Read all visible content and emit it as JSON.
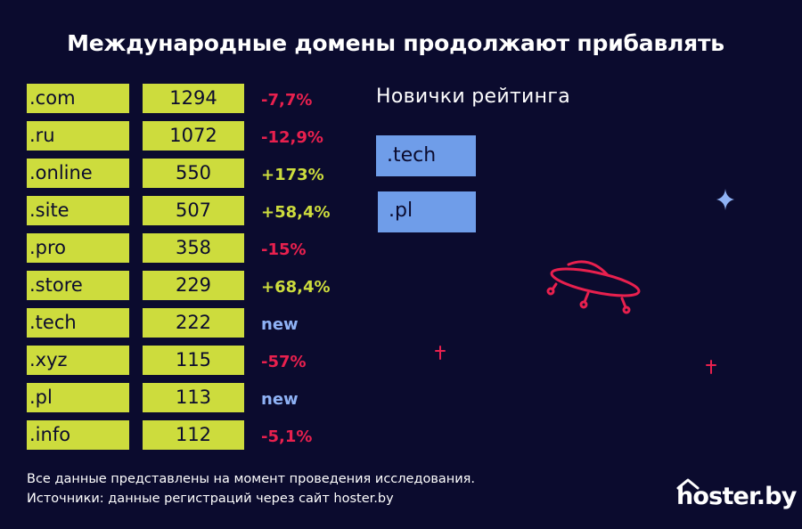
{
  "title": "Международные домены продолжают прибавлять",
  "chart_data": {
    "type": "table",
    "title": "Международные домены продолжают прибавлять",
    "columns": [
      "domain",
      "value",
      "change"
    ],
    "rows": [
      {
        "domain": ".com",
        "value": "1294",
        "change": "-7,7%",
        "trend": "neg"
      },
      {
        "domain": ".ru",
        "value": "1072",
        "change": "-12,9%",
        "trend": "neg"
      },
      {
        "domain": ".online",
        "value": "550",
        "change": "+173%",
        "trend": "pos"
      },
      {
        "domain": ".site",
        "value": "507",
        "change": "+58,4%",
        "trend": "pos"
      },
      {
        "domain": ".pro",
        "value": "358",
        "change": "-15%",
        "trend": "neg"
      },
      {
        "domain": ".store",
        "value": "229",
        "change": "+68,4%",
        "trend": "pos"
      },
      {
        "domain": ".tech",
        "value": "222",
        "change": "new",
        "trend": "new"
      },
      {
        "domain": ".xyz",
        "value": "115",
        "change": "-57%",
        "trend": "neg"
      },
      {
        "domain": ".pl",
        "value": "113",
        "change": "new",
        "trend": "new"
      },
      {
        "domain": ".info",
        "value": "112",
        "change": "-5,1%",
        "trend": "neg"
      }
    ]
  },
  "newcomers": {
    "title": "Новички рейтинга",
    "items": [
      ".tech",
      ".pl"
    ]
  },
  "footnotes": [
    "Все данные представлены на момент проведения исследования.",
    "Источники: данные регистраций через сайт hoster.by"
  ],
  "logo": {
    "text": "hoster.by"
  },
  "colors": {
    "background": "#0b0b2e",
    "cell": "#cddc3d",
    "negative": "#e8204e",
    "positive": "#cddc3d",
    "new": "#8fb2f5",
    "newcomer_box": "#6f9de9",
    "ufo": "#e8204e",
    "star_blue": "#8fb2f5",
    "star_red": "#e8204e"
  }
}
